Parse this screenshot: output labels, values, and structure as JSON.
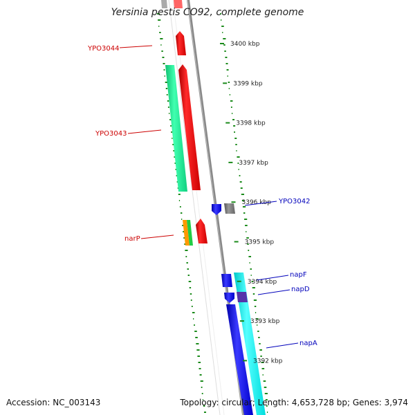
{
  "title": "Yersinia pestis CO92, complete genome",
  "footer": {
    "accession": "Accession: NC_003143",
    "stats": "Topology: circular; Length: 4,653,728 bp; Genes: 3,974"
  },
  "ruler": {
    "ticks": [
      {
        "label": "3400 kbp",
        "kbp": 3400
      },
      {
        "label": "3399 kbp",
        "kbp": 3399
      },
      {
        "label": "3398 kbp",
        "kbp": 3398
      },
      {
        "label": "3397 kbp",
        "kbp": 3397
      },
      {
        "label": "3396 kbp",
        "kbp": 3396
      },
      {
        "label": "3395 kbp",
        "kbp": 3395
      },
      {
        "label": "3394 kbp",
        "kbp": 3394
      },
      {
        "label": "3393 kbp",
        "kbp": 3393
      },
      {
        "label": "3392 kbp",
        "kbp": 3392
      }
    ]
  },
  "gene_labels": [
    {
      "id": "YPO3044",
      "text": "YPO3044",
      "color": "#cc0000"
    },
    {
      "id": "YPO3043",
      "text": "YPO3043",
      "color": "#cc0000"
    },
    {
      "id": "narP",
      "text": "narP",
      "color": "#cc0000"
    },
    {
      "id": "YPO3042",
      "text": "YPO3042",
      "color": "#0000bb"
    },
    {
      "id": "napF",
      "text": "napF",
      "color": "#0000bb"
    },
    {
      "id": "napD",
      "text": "napD",
      "color": "#0000bb"
    },
    {
      "id": "napA",
      "text": "napA",
      "color": "#0000bb"
    }
  ],
  "colors": {
    "forward_cds": "#ee0000",
    "reverse_cds": "#1a1aee",
    "forward_rna": "#22ee99",
    "reverse_rna": "#22eeee",
    "backbone": "#888888",
    "gc_ring": "#1a8a1a",
    "other": "#777777",
    "orange": "#ff9900"
  }
}
